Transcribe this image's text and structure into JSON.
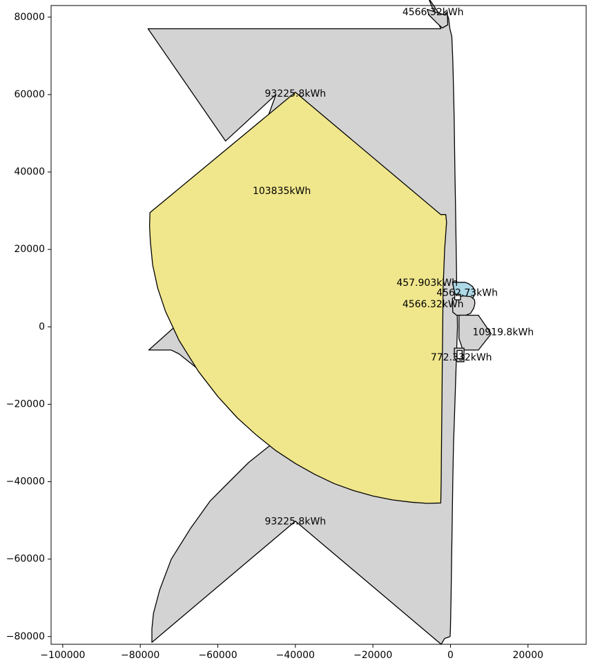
{
  "chart_data": {
    "type": "other",
    "title": "",
    "xlabel": "",
    "ylabel": "",
    "xlim": [
      -103000,
      35000
    ],
    "ylim": [
      -82000,
      83000
    ],
    "x_ticks": [
      -100000,
      -80000,
      -60000,
      -40000,
      -20000,
      0,
      20000
    ],
    "x_tick_labels": [
      "−100000",
      "−80000",
      "−60000",
      "−40000",
      "−20000",
      "0",
      "20000"
    ],
    "y_ticks": [
      -80000,
      -60000,
      -40000,
      -20000,
      0,
      20000,
      40000,
      60000,
      80000
    ],
    "y_tick_labels": [
      "−80000",
      "−60000",
      "−40000",
      "−20000",
      "0",
      "20000",
      "40000",
      "60000",
      "80000"
    ],
    "grid": false,
    "colors": {
      "gray": "#d3d3d3",
      "khaki": "#f0e68c",
      "lightblue": "#add8e6",
      "edge": "#000000"
    },
    "shapes": [
      {
        "name": "big-gray-polygon",
        "fill": "gray",
        "points": [
          [
            -3000,
            81000
          ],
          [
            -750,
            80500
          ],
          [
            -450,
            79500
          ],
          [
            -150,
            77000
          ],
          [
            100,
            76000
          ],
          [
            350,
            75000
          ],
          [
            600,
            69000
          ],
          [
            700,
            65000
          ],
          [
            850,
            59000
          ],
          [
            950,
            54000
          ],
          [
            1150,
            40000
          ],
          [
            1300,
            32000
          ],
          [
            1400,
            25000
          ],
          [
            1500,
            18000
          ],
          [
            1600,
            12000
          ],
          [
            1700,
            6000
          ],
          [
            1800,
            0
          ],
          [
            1600,
            -6000
          ],
          [
            1400,
            -12000
          ],
          [
            1200,
            -18000
          ],
          [
            1000,
            -24000
          ],
          [
            800,
            -30000
          ],
          [
            600,
            -40000
          ],
          [
            450,
            -50000
          ],
          [
            300,
            -60000
          ],
          [
            150,
            -70000
          ],
          [
            0,
            -78000
          ],
          [
            -100,
            -80000
          ],
          [
            -1500,
            -80500
          ],
          [
            -2400,
            -82000
          ],
          [
            -40000,
            -50200
          ],
          [
            -77000,
            -81500
          ],
          [
            -77000,
            -78000
          ],
          [
            -76600,
            -74000
          ],
          [
            -75000,
            -68000
          ],
          [
            -72000,
            -60000
          ],
          [
            -67000,
            -52000
          ],
          [
            -62000,
            -45000
          ],
          [
            -57000,
            -40000
          ],
          [
            -52000,
            -35000
          ],
          [
            -47000,
            -31000
          ],
          [
            -42000,
            -27500
          ],
          [
            -40000,
            -26000
          ],
          [
            -60000,
            -15000
          ],
          [
            -70000,
            -7000
          ],
          [
            -72000,
            -6000
          ],
          [
            -77800,
            -6000
          ],
          [
            -70000,
            1000
          ],
          [
            -65000,
            5000
          ],
          [
            -45000,
            60000
          ],
          [
            -58000,
            48000
          ],
          [
            -78000,
            77000
          ],
          [
            -2500,
            77000
          ],
          [
            -5700,
            85000
          ]
        ]
      },
      {
        "name": "khaki-sector",
        "fill": "khaki",
        "points": [
          [
            -77500,
            29500
          ],
          [
            -40000,
            60600
          ],
          [
            -2500,
            29000
          ],
          [
            -1200,
            29000
          ],
          [
            -1000,
            27000
          ],
          [
            -1500,
            20000
          ],
          [
            -1900,
            10000
          ],
          [
            -2000,
            0
          ],
          [
            -2100,
            -10000
          ],
          [
            -2200,
            -20000
          ],
          [
            -2300,
            -30000
          ],
          [
            -2400,
            -40000
          ],
          [
            -2500,
            -45500
          ],
          [
            -6000,
            -45600
          ],
          [
            -10000,
            -45300
          ],
          [
            -15000,
            -44700
          ],
          [
            -20000,
            -43700
          ],
          [
            -25000,
            -42300
          ],
          [
            -30000,
            -40500
          ],
          [
            -35000,
            -38100
          ],
          [
            -40000,
            -35300
          ],
          [
            -45000,
            -32000
          ],
          [
            -50000,
            -28000
          ],
          [
            -55000,
            -23500
          ],
          [
            -60000,
            -18000
          ],
          [
            -65000,
            -11500
          ],
          [
            -70000,
            -3500
          ],
          [
            -73500,
            4000
          ],
          [
            -75500,
            10000
          ],
          [
            -76800,
            16000
          ],
          [
            -77400,
            22000
          ],
          [
            -77600,
            26000
          ]
        ]
      },
      {
        "name": "lightblue-sector",
        "fill": "lightblue",
        "points": [
          [
            500,
            11500
          ],
          [
            3800,
            11500
          ],
          [
            4800,
            11100
          ],
          [
            5700,
            10400
          ],
          [
            6200,
            9500
          ],
          [
            6300,
            8500
          ],
          [
            5800,
            7500
          ],
          [
            4500,
            7200
          ],
          [
            3500,
            7200
          ],
          [
            2500,
            7400
          ],
          [
            1400,
            7600
          ]
        ]
      },
      {
        "name": "right-gray-lobe",
        "fill": "gray",
        "points": [
          [
            500,
            7400
          ],
          [
            3300,
            8000
          ],
          [
            5300,
            7800
          ],
          [
            6200,
            7000
          ],
          [
            6300,
            6000
          ],
          [
            6000,
            4800
          ],
          [
            5200,
            3500
          ],
          [
            4000,
            3000
          ],
          [
            3000,
            3000
          ],
          [
            1600,
            3000
          ],
          [
            600,
            3800
          ]
        ]
      },
      {
        "name": "right-gray-hexagon",
        "fill": "gray",
        "points": [
          [
            2200,
            3000
          ],
          [
            7200,
            3000
          ],
          [
            10500,
            -1800
          ],
          [
            7200,
            -6000
          ],
          [
            3200,
            -6000
          ],
          [
            2200,
            -3000
          ]
        ]
      },
      {
        "name": "small-white-box-top",
        "fill": "white",
        "points": [
          [
            1100,
            8400
          ],
          [
            2600,
            8400
          ],
          [
            2600,
            7000
          ],
          [
            1100,
            7000
          ]
        ]
      },
      {
        "name": "small-gray-notch",
        "fill": "gray",
        "points": [
          [
            1000,
            -5500
          ],
          [
            3500,
            -5500
          ],
          [
            3500,
            -9000
          ],
          [
            1800,
            -9000
          ],
          [
            1000,
            -8000
          ]
        ]
      },
      {
        "name": "small-white-box-bottom",
        "fill": "white",
        "points": [
          [
            1700,
            -6100
          ],
          [
            3000,
            -6100
          ],
          [
            3000,
            -8200
          ],
          [
            1700,
            -8200
          ]
        ]
      },
      {
        "name": "top-gray-notch",
        "fill": "gray",
        "points": [
          [
            -6000,
            82000
          ],
          [
            -1300,
            80500
          ],
          [
            -800,
            81500
          ],
          [
            -700,
            78000
          ],
          [
            -2100,
            77200
          ],
          [
            -3500,
            78500
          ],
          [
            -5500,
            80500
          ]
        ]
      }
    ],
    "labels": [
      {
        "text": "4566.32kWh",
        "x": -4500,
        "y": 81200
      },
      {
        "text": "93225.8kWh",
        "x": -40000,
        "y": 60200
      },
      {
        "text": "103835kWh",
        "x": -43500,
        "y": 35000
      },
      {
        "text": "457.903kWh",
        "x": -6000,
        "y": 11300
      },
      {
        "text": "4562.73kWh",
        "x": 4300,
        "y": 8700
      },
      {
        "text": "4566.32kWh",
        "x": -4500,
        "y": 5800
      },
      {
        "text": "10919.8kWh",
        "x": 13600,
        "y": -1500
      },
      {
        "text": "772.332kWh",
        "x": 2800,
        "y": -8000
      },
      {
        "text": "93225.8kWh",
        "x": -40000,
        "y": -50300
      }
    ]
  }
}
